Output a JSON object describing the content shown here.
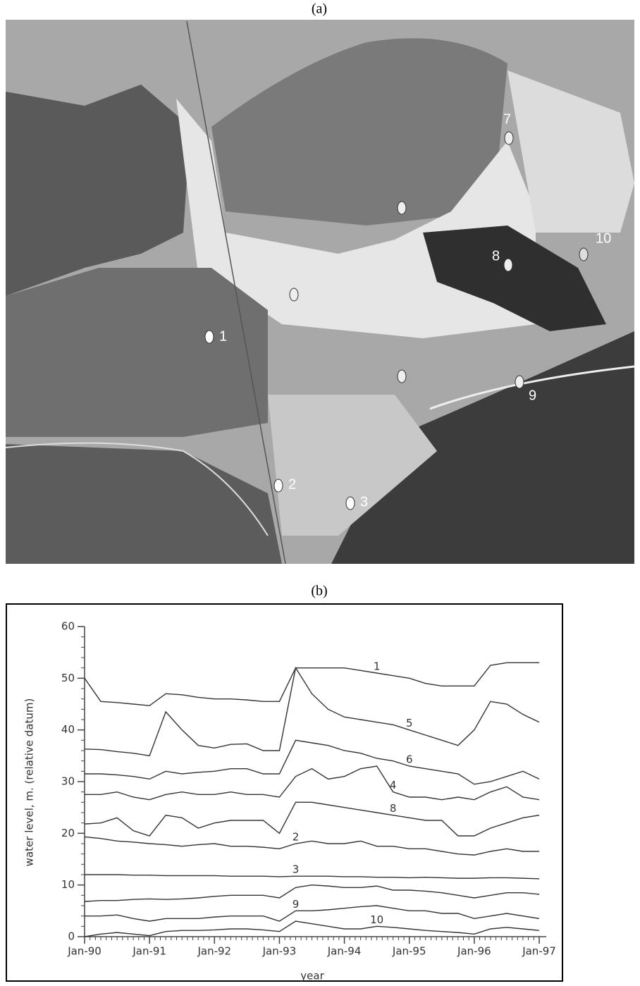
{
  "image_panel": {
    "caption": "(a)",
    "well_labels": [
      "1",
      "2",
      "3",
      "7",
      "8",
      "9",
      "10"
    ]
  },
  "chart_data": {
    "type": "line",
    "caption": "(b)",
    "x_label": "year",
    "y_label": "water level, m. (relative datum)",
    "x": [
      0,
      3,
      6,
      9,
      12,
      15,
      18,
      21,
      24,
      27,
      30,
      33,
      36,
      39,
      42,
      45,
      48,
      51,
      54,
      57,
      60,
      63,
      66,
      69,
      72,
      75,
      78,
      81,
      84
    ],
    "xlim": [
      0,
      84
    ],
    "xticks": [
      {
        "value": 0,
        "label": "Jan-90"
      },
      {
        "value": 12,
        "label": "Jan-91"
      },
      {
        "value": 24,
        "label": "Jan-92"
      },
      {
        "value": 36,
        "label": "Jan-93"
      },
      {
        "value": 48,
        "label": "Jan-94"
      },
      {
        "value": 60,
        "label": "Jan-95"
      },
      {
        "value": 72,
        "label": "Jan-96"
      },
      {
        "value": 84,
        "label": "Jan-97"
      }
    ],
    "ylim": [
      0,
      60
    ],
    "yticks": [
      0,
      10,
      20,
      30,
      40,
      50,
      60
    ],
    "series": [
      {
        "name": "1",
        "color": "#333333",
        "values": [
          50,
          45.5,
          45.3,
          45,
          44.7,
          47,
          46.8,
          46.3,
          46,
          46,
          45.8,
          45.5,
          45.5,
          52,
          52,
          52,
          52,
          51.5,
          51,
          50.5,
          50,
          49,
          48.5,
          48.5,
          48.5,
          52.5,
          53,
          53,
          53
        ]
      },
      {
        "name": "5",
        "color": "#333333",
        "values": [
          36.3,
          36.2,
          35.8,
          35.5,
          35,
          43.5,
          40,
          37,
          36.5,
          37.2,
          37.3,
          36,
          36,
          52,
          47,
          44,
          42.5,
          42,
          41.5,
          41,
          40,
          39,
          38,
          37,
          40,
          45.5,
          45,
          43,
          41.5
        ]
      },
      {
        "name": "6",
        "color": "#333333",
        "values": [
          31.5,
          31.5,
          31.3,
          31,
          30.5,
          32,
          31.5,
          31.8,
          32,
          32.5,
          32.5,
          31.5,
          31.5,
          38,
          37.5,
          37,
          36,
          35.5,
          34.5,
          34,
          33,
          32.5,
          32,
          31.5,
          29.5,
          30,
          31,
          32,
          30.5
        ]
      },
      {
        "name": "4",
        "color": "#333333",
        "values": [
          27.5,
          27.5,
          28,
          27,
          26.5,
          27.5,
          28,
          27.5,
          27.5,
          28,
          27.5,
          27.5,
          27,
          31,
          32.5,
          30.5,
          31,
          32.5,
          33,
          28,
          27,
          27,
          26.5,
          27,
          26.5,
          28,
          29,
          27,
          26.5
        ]
      },
      {
        "name": "8",
        "color": "#333333",
        "values": [
          21.8,
          22,
          23,
          20.5,
          19.5,
          23.5,
          23,
          21,
          22,
          22.5,
          22.5,
          22.5,
          20,
          26,
          26,
          25.5,
          25,
          24.5,
          24,
          23.5,
          23,
          22.5,
          22.5,
          19.5,
          19.5,
          21,
          22,
          23,
          23.5
        ]
      },
      {
        "name": "2",
        "color": "#333333",
        "values": [
          19.3,
          19,
          18.5,
          18.3,
          18,
          17.8,
          17.5,
          17.8,
          18,
          17.5,
          17.5,
          17.3,
          17,
          18,
          18.5,
          18,
          18,
          18.5,
          17.5,
          17.5,
          17,
          17,
          16.5,
          16,
          15.8,
          16.5,
          17,
          16.5,
          16.5
        ]
      },
      {
        "name": "3",
        "color": "#333333",
        "values": [
          12,
          12,
          12,
          11.9,
          11.9,
          11.8,
          11.8,
          11.8,
          11.8,
          11.7,
          11.7,
          11.7,
          11.6,
          11.7,
          11.7,
          11.7,
          11.6,
          11.6,
          11.5,
          11.5,
          11.4,
          11.5,
          11.4,
          11.3,
          11.3,
          11.4,
          11.4,
          11.3,
          11.2
        ]
      },
      {
        "color": "#333333",
        "values": [
          6.8,
          7,
          7,
          7.2,
          7.3,
          7.2,
          7.3,
          7.5,
          7.8,
          8,
          8,
          8,
          7.5,
          9.5,
          10,
          9.8,
          9.5,
          9.5,
          9.8,
          9,
          9,
          8.8,
          8.5,
          8,
          7.5,
          8,
          8.5,
          8.5,
          8.2
        ]
      },
      {
        "name": "9",
        "color": "#333333",
        "values": [
          4,
          4,
          4.2,
          3.5,
          3,
          3.5,
          3.5,
          3.5,
          3.8,
          4,
          4,
          4,
          3,
          5,
          5,
          5.2,
          5.5,
          5.8,
          6,
          5.5,
          5,
          5,
          4.5,
          4.5,
          3.5,
          4,
          4.5,
          4,
          3.5
        ]
      },
      {
        "name": "10",
        "color": "#333333",
        "values": [
          0,
          0.5,
          0.8,
          0.5,
          0.2,
          1,
          1.2,
          1.2,
          1.3,
          1.5,
          1.5,
          1.3,
          1,
          3,
          2.5,
          2,
          1.5,
          1.5,
          2,
          1.8,
          1.5,
          1.2,
          1,
          0.8,
          0.5,
          1.5,
          1.8,
          1.5,
          1.2
        ]
      }
    ]
  }
}
